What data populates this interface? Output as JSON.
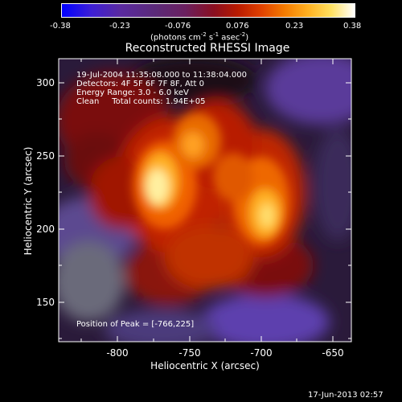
{
  "colorbar": {
    "ticks": [
      "-0.38",
      "-0.23",
      "-0.076",
      "0.076",
      "0.23",
      "0.38"
    ],
    "units_prefix": "(photons cm",
    "units_exp1": "-2",
    "units_mid": " s",
    "units_exp2": "-1",
    "units_suffix": " asec",
    "units_exp3": "-2",
    "units_close": ")"
  },
  "plot": {
    "title": "Reconstructed RHESSI Image",
    "info_lines": [
      "19-Jul-2004 11:35:08.000 to 11:38:04.000",
      "Detectors: 4F 5F 6F 7F 8F, Att 0",
      "Energy Range: 3.0 - 6.0 keV",
      "Clean     Total counts: 1.94E+05"
    ],
    "peak_label": "Position of Peak = [-766,225]",
    "x_label": "Heliocentric X (arcsec)",
    "y_label": "Heliocentric Y (arcsec)",
    "x_ticks": [
      "-800",
      "-750",
      "-700",
      "-650"
    ],
    "y_ticks": [
      "300",
      "250",
      "200",
      "150"
    ]
  },
  "timestamp": "17-Jun-2013 02:57"
}
